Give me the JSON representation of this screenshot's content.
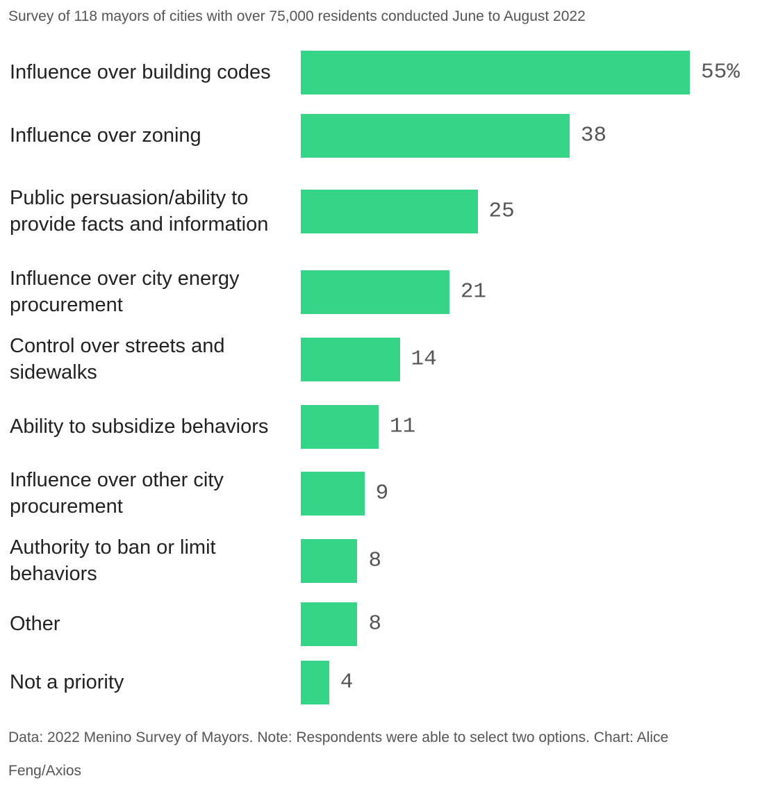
{
  "chart_data": {
    "type": "bar",
    "orientation": "horizontal",
    "subtitle": "Survey of 118 mayors of cities with over 75,000 residents conducted June to August 2022",
    "categories": [
      "Influence over building codes",
      "Influence over zoning",
      "Public persuasion/ability to provide facts and information",
      "Influence over city energy procurement",
      "Control over streets and sidewalks",
      "Ability to subsidize behaviors",
      "Influence over other city procurement",
      "Authority to ban or limit behaviors",
      "Other",
      "Not a priority"
    ],
    "values": [
      55,
      38,
      25,
      21,
      14,
      11,
      9,
      8,
      8,
      4
    ],
    "value_labels": [
      "55%",
      "38",
      "25",
      "21",
      "14",
      "11",
      "9",
      "8",
      "8",
      "4"
    ],
    "color": "#36d486",
    "note": "Data: 2022 Menino Survey of Mayors. Note: Respondents were able to select two options. Chart: Alice Feng/Axios"
  }
}
